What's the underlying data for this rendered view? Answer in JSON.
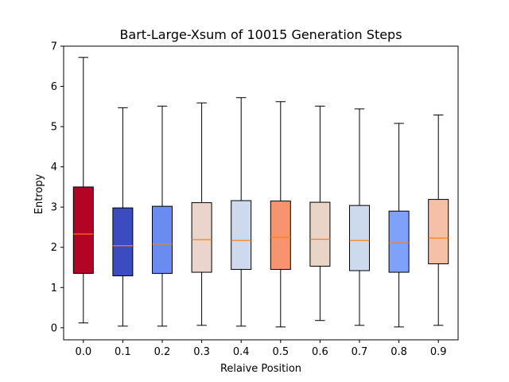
{
  "chart_data": {
    "type": "box",
    "title": "Bart-Large-Xsum of 10015 Generation Steps",
    "xlabel": "Relaive Position",
    "ylabel": "Entropy",
    "ylim": [
      -0.3,
      7.0
    ],
    "yticks": [
      0,
      1,
      2,
      3,
      4,
      5,
      6,
      7
    ],
    "grid": false,
    "median_color": "#ff7f0e",
    "categories": [
      "0.0",
      "0.1",
      "0.2",
      "0.3",
      "0.4",
      "0.5",
      "0.6",
      "0.7",
      "0.8",
      "0.9"
    ],
    "boxes": [
      {
        "category": "0.0",
        "whisker_low": 0.12,
        "q1": 1.35,
        "median": 2.33,
        "q3": 3.5,
        "whisker_high": 6.72,
        "color": "#b40426"
      },
      {
        "category": "0.1",
        "whisker_low": 0.04,
        "q1": 1.29,
        "median": 2.04,
        "q3": 2.98,
        "whisker_high": 5.47,
        "color": "#3b4cc0"
      },
      {
        "category": "0.2",
        "whisker_low": 0.04,
        "q1": 1.35,
        "median": 2.08,
        "q3": 3.02,
        "whisker_high": 5.51,
        "color": "#6a8bef"
      },
      {
        "category": "0.3",
        "whisker_low": 0.06,
        "q1": 1.38,
        "median": 2.19,
        "q3": 3.11,
        "whisker_high": 5.59,
        "color": "#e9d5cb"
      },
      {
        "category": "0.4",
        "whisker_low": 0.04,
        "q1": 1.45,
        "median": 2.17,
        "q3": 3.16,
        "whisker_high": 5.72,
        "color": "#cdd9ec"
      },
      {
        "category": "0.5",
        "whisker_low": 0.02,
        "q1": 1.45,
        "median": 2.25,
        "q3": 3.15,
        "whisker_high": 5.62,
        "color": "#f7936f"
      },
      {
        "category": "0.6",
        "whisker_low": 0.18,
        "q1": 1.53,
        "median": 2.2,
        "q3": 3.12,
        "whisker_high": 5.51,
        "color": "#ead4c8"
      },
      {
        "category": "0.7",
        "whisker_low": 0.06,
        "q1": 1.42,
        "median": 2.17,
        "q3": 3.04,
        "whisker_high": 5.44,
        "color": "#cdd9ec"
      },
      {
        "category": "0.8",
        "whisker_low": 0.02,
        "q1": 1.38,
        "median": 2.11,
        "q3": 2.9,
        "whisker_high": 5.08,
        "color": "#7ea1fa"
      },
      {
        "category": "0.9",
        "whisker_low": 0.06,
        "q1": 1.59,
        "median": 2.23,
        "q3": 3.19,
        "whisker_high": 5.29,
        "color": "#f5c0a7"
      }
    ]
  }
}
